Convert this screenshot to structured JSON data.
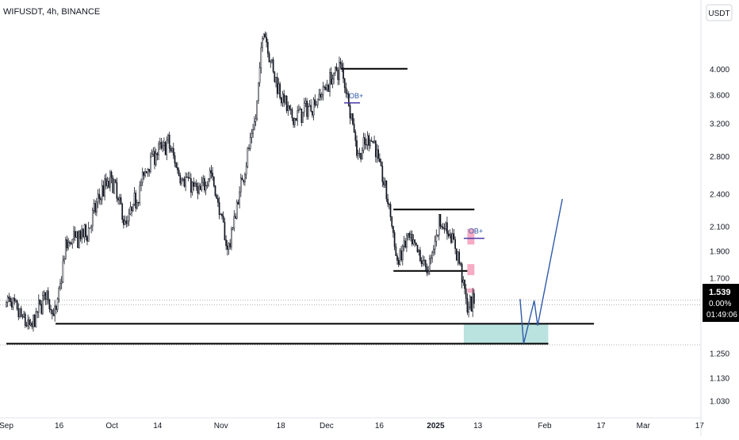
{
  "header": {
    "symbol_line": "WIFUSDT, 4h, BINANCE"
  },
  "currency_badge": "USDT",
  "price_axis": {
    "ticks": [
      "4.000",
      "3.600",
      "3.200",
      "2.800",
      "2.400",
      "2.100",
      "1.900",
      "1.700",
      "1.250",
      "1.130",
      "1.030"
    ]
  },
  "time_axis": {
    "labels": [
      "Sep",
      "16",
      "Oct",
      "14",
      "Nov",
      "18",
      "Dec",
      "16",
      "2025",
      "13",
      "Feb",
      "17",
      "Mar",
      "17"
    ],
    "bold_label": "2025"
  },
  "last_price_box": {
    "price": "1.539",
    "change": "0.00%",
    "countdown": "01:49:06"
  },
  "annotations": {
    "ob_upper": "OB+",
    "ob_lower": "OB+"
  },
  "colors": {
    "candle": "#131722",
    "projection": "#2f5aa8",
    "ob_zone": "#f48fb1",
    "target_zone": "#b2dfdb",
    "level_line": "#000000",
    "price_box_bg": "#000000",
    "price_box_text": "#ffffff"
  },
  "chart_data": {
    "type": "candlestick",
    "symbol": "WIFUSDT",
    "timeframe": "4h",
    "exchange": "BINANCE",
    "scale": "log",
    "ylim": [
      0.96,
      5.3
    ],
    "last_price": 1.539,
    "price_path": [
      {
        "date": "2024-09-01",
        "price": 1.56
      },
      {
        "date": "2024-09-08",
        "price": 1.38
      },
      {
        "date": "2024-09-12",
        "price": 1.6
      },
      {
        "date": "2024-09-15",
        "price": 1.45
      },
      {
        "date": "2024-09-18",
        "price": 1.95
      },
      {
        "date": "2024-09-24",
        "price": 2.05
      },
      {
        "date": "2024-09-28",
        "price": 2.42
      },
      {
        "date": "2024-10-01",
        "price": 2.55
      },
      {
        "date": "2024-10-05",
        "price": 2.1
      },
      {
        "date": "2024-10-12",
        "price": 2.78
      },
      {
        "date": "2024-10-17",
        "price": 2.95
      },
      {
        "date": "2024-10-20",
        "price": 2.62
      },
      {
        "date": "2024-10-26",
        "price": 2.4
      },
      {
        "date": "2024-10-29",
        "price": 2.65
      },
      {
        "date": "2024-11-03",
        "price": 1.9
      },
      {
        "date": "2024-11-07",
        "price": 2.55
      },
      {
        "date": "2024-11-11",
        "price": 3.3
      },
      {
        "date": "2024-11-13",
        "price": 4.8
      },
      {
        "date": "2024-11-16",
        "price": 3.9
      },
      {
        "date": "2024-11-21",
        "price": 3.25
      },
      {
        "date": "2024-11-27",
        "price": 3.45
      },
      {
        "date": "2024-12-05",
        "price": 4.05
      },
      {
        "date": "2024-12-07",
        "price": 3.6
      },
      {
        "date": "2024-12-10",
        "price": 2.8
      },
      {
        "date": "2024-12-14",
        "price": 3.05
      },
      {
        "date": "2024-12-19",
        "price": 2.25
      },
      {
        "date": "2024-12-21",
        "price": 1.8
      },
      {
        "date": "2024-12-24",
        "price": 2.0
      },
      {
        "date": "2024-12-30",
        "price": 1.75
      },
      {
        "date": "2025-01-02",
        "price": 2.15
      },
      {
        "date": "2025-01-05",
        "price": 2.05
      },
      {
        "date": "2025-01-08",
        "price": 1.8
      },
      {
        "date": "2025-01-10",
        "price": 1.5
      },
      {
        "date": "2025-01-12",
        "price": 1.54
      }
    ],
    "levels": [
      {
        "price": 4.0,
        "from": "2024-12-05",
        "to": "2024-12-24"
      },
      {
        "price": 2.25,
        "from": "2024-12-20",
        "to": "2025-01-12"
      },
      {
        "price": 1.75,
        "from": "2024-12-20",
        "to": "2025-01-10"
      },
      {
        "price": 1.41,
        "from": "2024-09-15",
        "to": "2025-02-15"
      },
      {
        "price": 1.3,
        "from": "2024-09-01",
        "to": "2025-02-02"
      }
    ],
    "order_blocks": [
      {
        "label": "OB+",
        "price": 3.48,
        "date": "2024-12-06"
      },
      {
        "label": "OB+",
        "price": 2.0,
        "date": "2025-01-09"
      }
    ],
    "zones": [
      {
        "kind": "ob",
        "from": "2025-01-10",
        "to": "2025-01-12",
        "low": 1.95,
        "high": 2.08
      },
      {
        "kind": "ob",
        "from": "2025-01-10",
        "to": "2025-01-12",
        "low": 1.72,
        "high": 1.8
      },
      {
        "kind": "ob",
        "from": "2025-01-10",
        "to": "2025-01-12",
        "low": 1.6,
        "high": 1.63
      },
      {
        "kind": "target",
        "from": "2025-01-09",
        "to": "2025-02-02",
        "low": 1.3,
        "high": 1.41
      }
    ],
    "projection": [
      {
        "date": "2025-01-25",
        "price": 1.56
      },
      {
        "date": "2025-01-26",
        "price": 1.3
      },
      {
        "date": "2025-01-29",
        "price": 1.55
      },
      {
        "date": "2025-01-30",
        "price": 1.4
      },
      {
        "date": "2025-02-06",
        "price": 2.35
      }
    ]
  }
}
